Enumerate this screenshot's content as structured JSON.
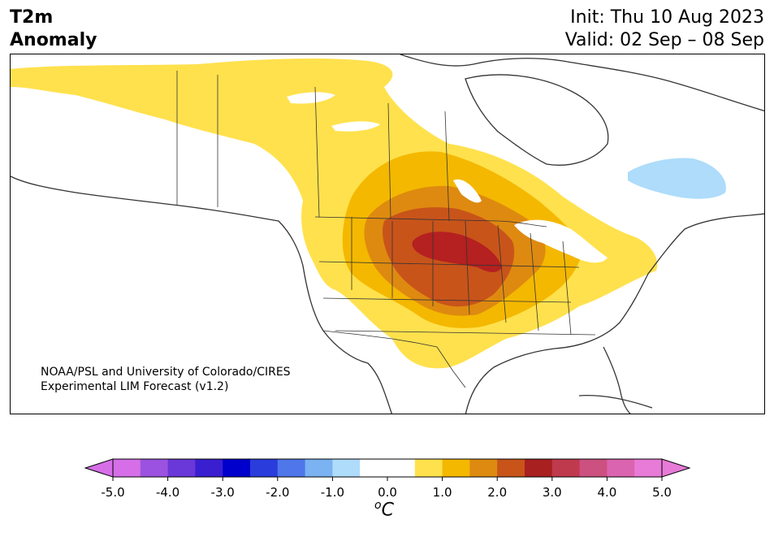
{
  "header": {
    "title_line1": "T2m",
    "title_line2": "Anomaly",
    "init": "Init: Thu 10 Aug 2023",
    "valid": "Valid: 02 Sep – 08 Sep"
  },
  "credit": {
    "line1": "NOAA/PSL and University of Colorado/CIRES",
    "line2": "Experimental LIM Forecast (v1.2)"
  },
  "colorbar": {
    "unit": "°C",
    "unit_base": "C",
    "unit_sup": "o",
    "ticks": [
      "-5.0",
      "-4.0",
      "-3.0",
      "-2.0",
      "-1.0",
      "0.0",
      "1.0",
      "2.0",
      "3.0",
      "4.0",
      "5.0"
    ],
    "colors": [
      "#d66ee8",
      "#9b52e0",
      "#6a38d8",
      "#3a1fd0",
      "#0000cc",
      "#2a3ddc",
      "#4f77ea",
      "#7ab2f2",
      "#aedcfa",
      "#ffffff",
      "#ffffff",
      "#ffe14d",
      "#f4b800",
      "#de8a10",
      "#c8541a",
      "#a82020",
      "#c03a4e",
      "#cc5080",
      "#db64b0",
      "#e87ad8"
    ],
    "under_color": "#d66ee8",
    "over_color": "#e87ad8"
  },
  "map": {
    "anomaly_colors": {
      "level1": "#ffe14d",
      "level2": "#f4b800",
      "level3": "#de8a10",
      "level4": "#c8541a",
      "level5": "#b52020",
      "cold1": "#aedcfa"
    }
  }
}
